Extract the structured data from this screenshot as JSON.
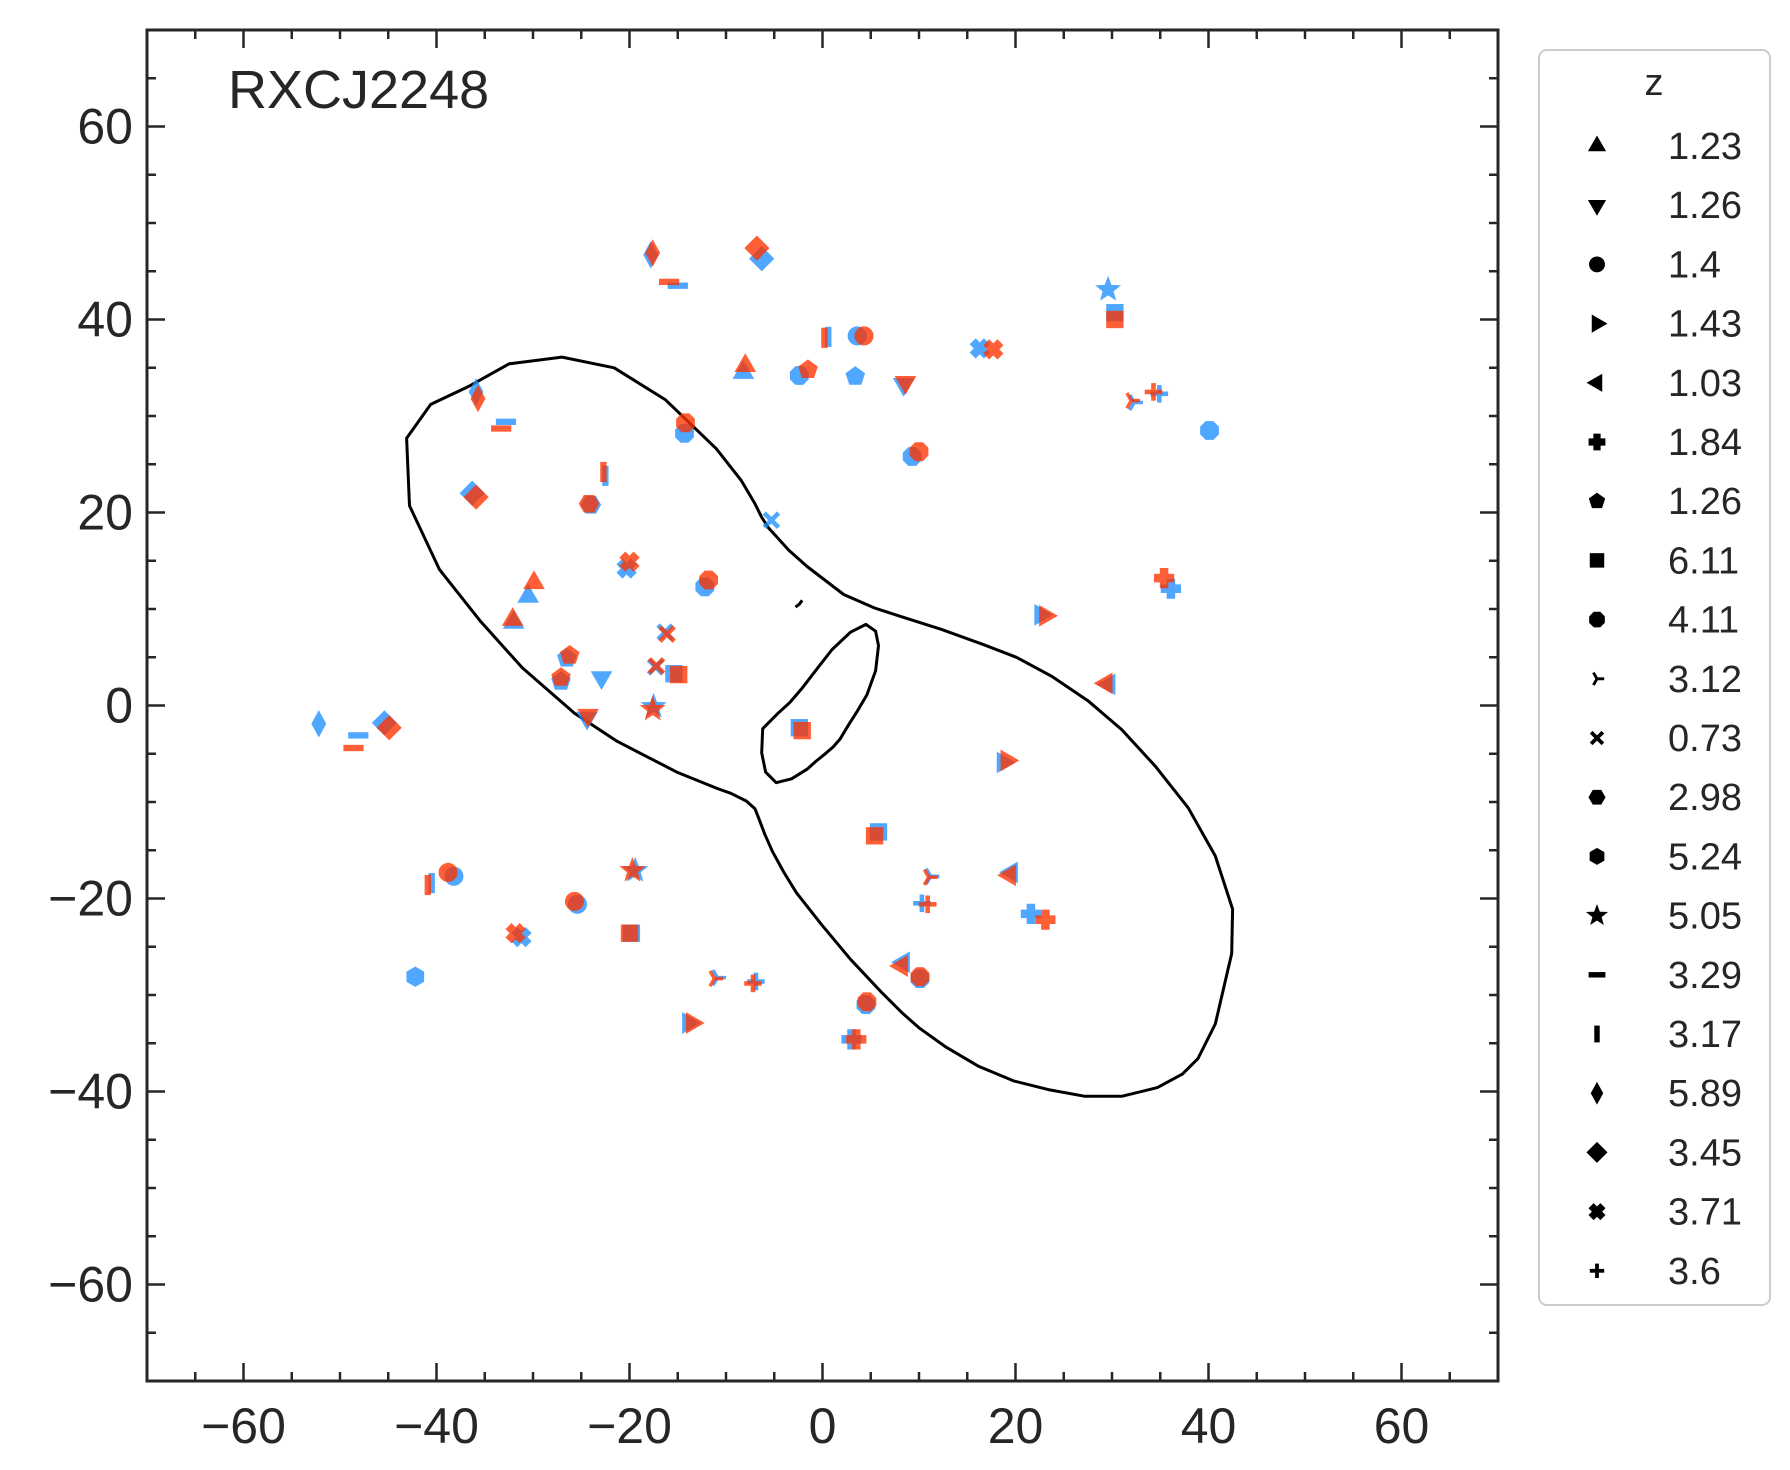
{
  "chart_data": {
    "type": "scatter",
    "title": "",
    "annotation": "RXCJ2248",
    "xlabel": "",
    "ylabel": "",
    "xlim": [
      -70,
      70
    ],
    "ylim": [
      -70,
      70
    ],
    "x_ticks": [
      -60,
      -40,
      -20,
      0,
      20,
      40,
      60
    ],
    "y_ticks": [
      -60,
      -40,
      -20,
      0,
      20,
      40,
      60
    ],
    "x_tick_labels": [
      "−60",
      "−40",
      "−20",
      "0",
      "20",
      "40",
      "60"
    ],
    "y_tick_labels": [
      "−60",
      "−40",
      "−20",
      "0",
      "20",
      "40",
      "60"
    ],
    "grid": false,
    "legend": {
      "title": "z",
      "placement": "outside-right",
      "entries": [
        {
          "label": "1.23",
          "marker": "triangle-up"
        },
        {
          "label": "1.26",
          "marker": "triangle-down"
        },
        {
          "label": "1.4",
          "marker": "circle"
        },
        {
          "label": "1.43",
          "marker": "triangle-right"
        },
        {
          "label": "1.03",
          "marker": "triangle-left"
        },
        {
          "label": "1.84",
          "marker": "plus-filled"
        },
        {
          "label": "1.26",
          "marker": "pentagon"
        },
        {
          "label": "6.11",
          "marker": "square"
        },
        {
          "label": "4.11",
          "marker": "octagon"
        },
        {
          "label": "3.12",
          "marker": "tri-right"
        },
        {
          "label": "0.73",
          "marker": "x"
        },
        {
          "label": "2.98",
          "marker": "hexagon-flat"
        },
        {
          "label": "5.24",
          "marker": "hexagon"
        },
        {
          "label": "5.05",
          "marker": "star"
        },
        {
          "label": "3.29",
          "marker": "hline"
        },
        {
          "label": "3.17",
          "marker": "vline"
        },
        {
          "label": "5.89",
          "marker": "thin-diamond"
        },
        {
          "label": "3.45",
          "marker": "diamond"
        },
        {
          "label": "3.71",
          "marker": "x-filled"
        },
        {
          "label": "3.6",
          "marker": "plus"
        }
      ]
    },
    "colors": {
      "observed": "#1f8fff",
      "predicted": "#ff3300",
      "curve": "#000000",
      "axes": "#262626"
    },
    "series": [
      {
        "role": "observed",
        "color": "#1f8fff",
        "points": [
          {
            "x": -30.5,
            "y": 11.3,
            "marker": "triangle-up"
          },
          {
            "x": -32.0,
            "y": 8.6,
            "marker": "triangle-up"
          },
          {
            "x": -8.2,
            "y": 34.5,
            "marker": "triangle-up"
          },
          {
            "x": -22.9,
            "y": 2.9,
            "marker": "triangle-down"
          },
          {
            "x": -24.4,
            "y": -1.3,
            "marker": "triangle-down"
          },
          {
            "x": 8.4,
            "y": 33.3,
            "marker": "triangle-down"
          },
          {
            "x": -25.4,
            "y": -20.6,
            "marker": "circle"
          },
          {
            "x": -38.2,
            "y": -17.7,
            "marker": "circle"
          },
          {
            "x": 3.6,
            "y": 38.3,
            "marker": "circle"
          },
          {
            "x": 22.6,
            "y": 9.4,
            "marker": "triangle-right"
          },
          {
            "x": 18.7,
            "y": -5.9,
            "marker": "triangle-right"
          },
          {
            "x": -13.9,
            "y": -32.9,
            "marker": "triangle-right"
          },
          {
            "x": 29.7,
            "y": 2.2,
            "marker": "triangle-left"
          },
          {
            "x": 19.6,
            "y": -17.3,
            "marker": "triangle-left"
          },
          {
            "x": 8.4,
            "y": -26.6,
            "marker": "triangle-left"
          },
          {
            "x": 36.1,
            "y": 12.1,
            "marker": "plus-filled"
          },
          {
            "x": 21.6,
            "y": -21.6,
            "marker": "plus-filled"
          },
          {
            "x": 3.0,
            "y": -34.6,
            "marker": "plus-filled"
          },
          {
            "x": -26.5,
            "y": 4.9,
            "marker": "pentagon"
          },
          {
            "x": -27.1,
            "y": 2.5,
            "marker": "pentagon"
          },
          {
            "x": 3.4,
            "y": 34.1,
            "marker": "pentagon"
          },
          {
            "x": -15.4,
            "y": 3.3,
            "marker": "square"
          },
          {
            "x": 30.3,
            "y": 40.7,
            "marker": "square"
          },
          {
            "x": -2.4,
            "y": -2.3,
            "marker": "square"
          },
          {
            "x": 5.8,
            "y": -13.1,
            "marker": "square"
          },
          {
            "x": -19.8,
            "y": -23.6,
            "marker": "square"
          },
          {
            "x": -14.3,
            "y": 28.2,
            "marker": "octagon"
          },
          {
            "x": 9.3,
            "y": 25.8,
            "marker": "octagon"
          },
          {
            "x": -12.2,
            "y": 12.3,
            "marker": "octagon"
          },
          {
            "x": 40.1,
            "y": 28.5,
            "marker": "octagon"
          },
          {
            "x": 4.5,
            "y": -31.0,
            "marker": "octagon"
          },
          {
            "x": 10.1,
            "y": -28.3,
            "marker": "octagon"
          },
          {
            "x": -2.4,
            "y": 34.2,
            "marker": "octagon"
          },
          {
            "x": 32.3,
            "y": 31.4,
            "marker": "tri-right"
          },
          {
            "x": 11.2,
            "y": -17.7,
            "marker": "tri-right"
          },
          {
            "x": -10.9,
            "y": -28.2,
            "marker": "tri-right"
          },
          {
            "x": -5.3,
            "y": 19.2,
            "marker": "x"
          },
          {
            "x": -17.3,
            "y": 4.0,
            "marker": "x"
          },
          {
            "x": -16.3,
            "y": 7.6,
            "marker": "x"
          },
          {
            "x": -24.0,
            "y": 20.8,
            "marker": "hexagon-flat"
          },
          {
            "x": -42.2,
            "y": -28.1,
            "marker": "hexagon"
          },
          {
            "x": 29.6,
            "y": 43.1,
            "marker": "star"
          },
          {
            "x": -17.5,
            "y": -0.1,
            "marker": "star"
          },
          {
            "x": -19.4,
            "y": -17.1,
            "marker": "star"
          },
          {
            "x": -15.0,
            "y": 43.5,
            "marker": "hline"
          },
          {
            "x": -32.8,
            "y": 29.4,
            "marker": "hline"
          },
          {
            "x": -48.1,
            "y": -3.1,
            "marker": "hline"
          },
          {
            "x": 0.6,
            "y": 38.2,
            "marker": "vline"
          },
          {
            "x": -22.5,
            "y": 23.8,
            "marker": "vline"
          },
          {
            "x": -40.5,
            "y": -18.4,
            "marker": "vline"
          },
          {
            "x": -17.8,
            "y": 46.7,
            "marker": "thin-diamond"
          },
          {
            "x": -35.9,
            "y": 32.5,
            "marker": "thin-diamond"
          },
          {
            "x": -52.2,
            "y": -1.9,
            "marker": "thin-diamond"
          },
          {
            "x": -6.3,
            "y": 46.3,
            "marker": "diamond"
          },
          {
            "x": -36.3,
            "y": 22.0,
            "marker": "diamond"
          },
          {
            "x": -45.4,
            "y": -1.8,
            "marker": "diamond"
          },
          {
            "x": 16.3,
            "y": 37.0,
            "marker": "x-filled"
          },
          {
            "x": -20.3,
            "y": 14.2,
            "marker": "x-filled"
          },
          {
            "x": -31.2,
            "y": -24.0,
            "marker": "x-filled"
          },
          {
            "x": 34.9,
            "y": 32.3,
            "marker": "plus"
          },
          {
            "x": 10.3,
            "y": -20.5,
            "marker": "plus"
          },
          {
            "x": -6.9,
            "y": -28.6,
            "marker": "plus"
          }
        ]
      },
      {
        "role": "predicted",
        "color": "#ff3300",
        "points": [
          {
            "x": -29.9,
            "y": 12.7,
            "marker": "triangle-up"
          },
          {
            "x": -32.1,
            "y": 8.9,
            "marker": "triangle-up"
          },
          {
            "x": -8.0,
            "y": 35.2,
            "marker": "triangle-up"
          },
          {
            "x": -24.3,
            "y": -1.0,
            "marker": "triangle-down"
          },
          {
            "x": 8.6,
            "y": 33.5,
            "marker": "triangle-down"
          },
          {
            "x": -25.7,
            "y": -20.3,
            "marker": "circle"
          },
          {
            "x": -38.8,
            "y": -17.3,
            "marker": "circle"
          },
          {
            "x": 4.3,
            "y": 38.3,
            "marker": "circle"
          },
          {
            "x": 23.1,
            "y": 9.3,
            "marker": "triangle-right"
          },
          {
            "x": 19.1,
            "y": -5.7,
            "marker": "triangle-right"
          },
          {
            "x": -13.5,
            "y": -32.9,
            "marker": "triangle-right"
          },
          {
            "x": 29.4,
            "y": 2.3,
            "marker": "triangle-left"
          },
          {
            "x": 19.4,
            "y": -17.6,
            "marker": "triangle-left"
          },
          {
            "x": 8.2,
            "y": -27.0,
            "marker": "triangle-left"
          },
          {
            "x": 35.4,
            "y": 13.2,
            "marker": "plus-filled"
          },
          {
            "x": 23.1,
            "y": -22.2,
            "marker": "plus-filled"
          },
          {
            "x": 3.5,
            "y": -34.6,
            "marker": "plus-filled"
          },
          {
            "x": -26.2,
            "y": 5.2,
            "marker": "pentagon"
          },
          {
            "x": -27.1,
            "y": 2.9,
            "marker": "pentagon"
          },
          {
            "x": -1.5,
            "y": 34.8,
            "marker": "pentagon"
          },
          {
            "x": -14.9,
            "y": 3.2,
            "marker": "square"
          },
          {
            "x": 30.3,
            "y": 40.0,
            "marker": "square"
          },
          {
            "x": -2.1,
            "y": -2.6,
            "marker": "square"
          },
          {
            "x": 5.4,
            "y": -13.5,
            "marker": "square"
          },
          {
            "x": -20.0,
            "y": -23.6,
            "marker": "square"
          },
          {
            "x": -14.2,
            "y": 29.3,
            "marker": "octagon"
          },
          {
            "x": 10.0,
            "y": 26.3,
            "marker": "octagon"
          },
          {
            "x": -11.8,
            "y": 13.0,
            "marker": "octagon"
          },
          {
            "x": 4.6,
            "y": -30.7,
            "marker": "octagon"
          },
          {
            "x": 10.1,
            "y": -28.1,
            "marker": "octagon"
          },
          {
            "x": 32.0,
            "y": 31.6,
            "marker": "tri-right"
          },
          {
            "x": 11.0,
            "y": -17.8,
            "marker": "tri-right"
          },
          {
            "x": -11.2,
            "y": -28.3,
            "marker": "tri-right"
          },
          {
            "x": -16.1,
            "y": 7.4,
            "marker": "x"
          },
          {
            "x": -17.2,
            "y": 4.1,
            "marker": "x"
          },
          {
            "x": -24.2,
            "y": 20.9,
            "marker": "hexagon-flat"
          },
          {
            "x": -17.6,
            "y": -0.4,
            "marker": "star"
          },
          {
            "x": -19.7,
            "y": -17.1,
            "marker": "star"
          },
          {
            "x": -15.9,
            "y": 43.9,
            "marker": "hline"
          },
          {
            "x": -33.3,
            "y": 28.7,
            "marker": "hline"
          },
          {
            "x": -48.6,
            "y": -4.4,
            "marker": "hline"
          },
          {
            "x": 0.2,
            "y": 38.1,
            "marker": "vline"
          },
          {
            "x": -22.7,
            "y": 24.2,
            "marker": "vline"
          },
          {
            "x": -40.9,
            "y": -18.6,
            "marker": "vline"
          },
          {
            "x": -17.6,
            "y": 46.9,
            "marker": "thin-diamond"
          },
          {
            "x": -35.7,
            "y": 31.8,
            "marker": "thin-diamond"
          },
          {
            "x": -6.8,
            "y": 47.4,
            "marker": "diamond"
          },
          {
            "x": -35.9,
            "y": 21.6,
            "marker": "diamond"
          },
          {
            "x": -44.9,
            "y": -2.3,
            "marker": "diamond"
          },
          {
            "x": 17.7,
            "y": 36.9,
            "marker": "x-filled"
          },
          {
            "x": -20.0,
            "y": 14.9,
            "marker": "x-filled"
          },
          {
            "x": -31.8,
            "y": -23.6,
            "marker": "x-filled"
          },
          {
            "x": 34.3,
            "y": 32.5,
            "marker": "plus"
          },
          {
            "x": 10.9,
            "y": -20.6,
            "marker": "plus"
          },
          {
            "x": -7.2,
            "y": -28.8,
            "marker": "plus"
          }
        ]
      }
    ],
    "curves": [
      {
        "name": "outer critical curve",
        "closed": true,
        "x": [
          -36.6,
          -40.6,
          -43.1,
          -42.8,
          -39.7,
          -35.5,
          -31.1,
          -25.7,
          -21.3,
          -15.1,
          -10.9,
          -9.5,
          -7.9,
          -7.0,
          -6.6,
          -6.0,
          -5.2,
          -4.0,
          -2.7,
          -0.1,
          2.9,
          6.2,
          8.3,
          10.0,
          12.8,
          16.2,
          19.8,
          23.4,
          27.2,
          31.0,
          34.7,
          37.3,
          38.9,
          40.7,
          42.4,
          42.5,
          40.7,
          37.9,
          34.5,
          31.0,
          27.5,
          23.8,
          20.1,
          16.7,
          12.3,
          8.5,
          5.4,
          2.2,
          -1.6,
          -3.5,
          -4.5,
          -5.6,
          -6.3,
          -7.0,
          -8.4,
          -11.0,
          -16.3,
          -21.6,
          -27.0,
          -32.5,
          -36.6
        ],
        "y": [
          33.1,
          31.2,
          27.7,
          20.7,
          14.1,
          8.8,
          3.9,
          -0.8,
          -3.7,
          -6.9,
          -8.6,
          -9.1,
          -9.9,
          -10.7,
          -11.7,
          -13.3,
          -15.1,
          -17.3,
          -19.4,
          -22.7,
          -26.3,
          -29.8,
          -31.9,
          -33.4,
          -35.4,
          -37.4,
          -38.9,
          -39.8,
          -40.5,
          -40.5,
          -39.6,
          -38.2,
          -36.6,
          -33.0,
          -25.7,
          -21.1,
          -15.6,
          -10.6,
          -6.3,
          -2.5,
          0.5,
          3.0,
          5.0,
          6.3,
          7.9,
          9.1,
          10.1,
          11.5,
          14.4,
          16.1,
          17.2,
          18.4,
          19.5,
          20.9,
          23.3,
          26.6,
          31.7,
          35.0,
          36.1,
          35.4,
          33.1
        ]
      },
      {
        "name": "inner critical curve",
        "closed": true,
        "x": [
          -6.2,
          -6.3,
          -5.9,
          -4.8,
          -3.2,
          -1.6,
          -0.7,
          0.4,
          1.1,
          1.8,
          2.7,
          3.6,
          4.6,
          5.5,
          5.8,
          5.5,
          4.5,
          2.9,
          1.0,
          -0.5,
          -2.1,
          -3.4,
          -4.6,
          -6.2
        ],
        "y": [
          -2.4,
          -4.9,
          -6.9,
          -8.0,
          -7.6,
          -6.6,
          -5.8,
          -4.9,
          -4.3,
          -3.5,
          -2.0,
          -0.6,
          1.1,
          3.6,
          6.2,
          7.7,
          8.4,
          7.6,
          5.8,
          3.9,
          1.8,
          0.3,
          -0.8,
          -2.4
        ]
      },
      {
        "name": "small critical curve",
        "closed": false,
        "x": [
          -2.8,
          -2.4,
          -2.1
        ],
        "y": [
          10.2,
          10.5,
          10.9
        ]
      }
    ]
  }
}
